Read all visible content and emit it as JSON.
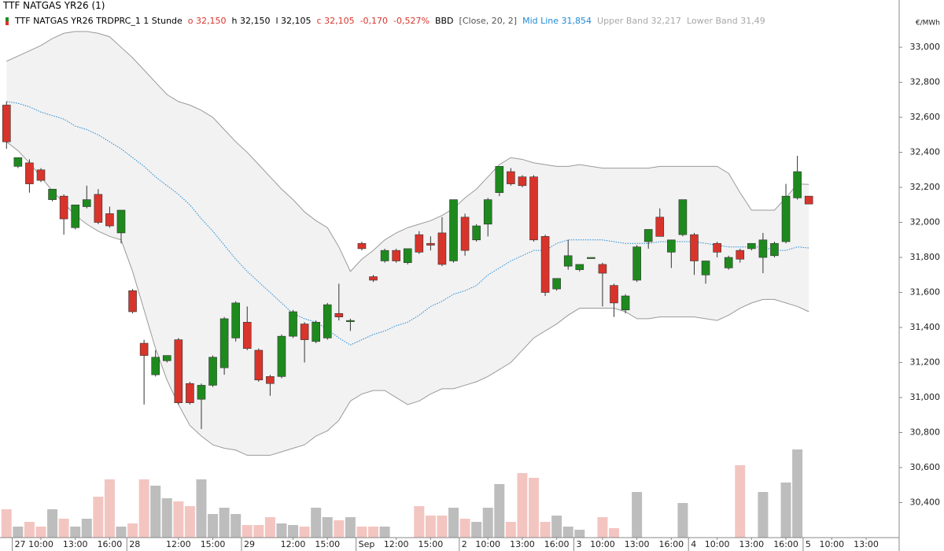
{
  "window_title": "TTF NATGAS YR26 (1)",
  "header": [
    {
      "text": "TTF NATGAS YR26 TRDPRC_1 1 Stunde",
      "color": "#000000"
    },
    {
      "text": "o 32,150",
      "color": "#d9342b"
    },
    {
      "text": "h 32,150",
      "color": "#000000"
    },
    {
      "text": "l 32,105",
      "color": "#000000"
    },
    {
      "text": "c 32,105",
      "color": "#d9342b"
    },
    {
      "text": "-0,170",
      "color": "#d9342b"
    },
    {
      "text": "-0,527%",
      "color": "#d9342b"
    },
    {
      "text": "BBD",
      "color": "#000000"
    },
    {
      "text": "[Close, 20, 2]",
      "color": "#555555"
    },
    {
      "text": "Mid Line 31,854",
      "color": "#1f8ad6"
    },
    {
      "text": "Upper Band 32,217",
      "color": "#a8a8a8"
    },
    {
      "text": "Lower Band 31,49",
      "color": "#a8a8a8"
    }
  ],
  "chart_data": {
    "type": "candlestick",
    "unit_label": "€/MWh",
    "ylim": [
      30.2,
      33.27
    ],
    "yticks": [
      {
        "value": 30.4,
        "label": "30,400"
      },
      {
        "value": 30.6,
        "label": "30,600"
      },
      {
        "value": 30.8,
        "label": "30,800"
      },
      {
        "value": 31.0,
        "label": "31,000"
      },
      {
        "value": 31.2,
        "label": "31,200"
      },
      {
        "value": 31.4,
        "label": "31,400"
      },
      {
        "value": 31.6,
        "label": "31,600"
      },
      {
        "value": 31.8,
        "label": "31,800"
      },
      {
        "value": 32.0,
        "label": "32,000"
      },
      {
        "value": 32.2,
        "label": "32,200"
      },
      {
        "value": 32.4,
        "label": "32,400"
      },
      {
        "value": 32.6,
        "label": "32,600"
      },
      {
        "value": 32.8,
        "label": "32,800"
      },
      {
        "value": 33.0,
        "label": "33,000"
      }
    ],
    "up_color": "#1e8a1e",
    "down_color": "#d9342b",
    "volume_up_color": "#bdbdbd",
    "volume_down_color": "#f3c5c1",
    "band_fill": "#f2f2f2",
    "categories": [
      null,
      "27",
      null,
      "10:00",
      null,
      null,
      "13:00",
      null,
      null,
      "16:00",
      null,
      "28",
      null,
      null,
      null,
      "12:00",
      null,
      null,
      "15:00",
      null,
      null,
      "29",
      null,
      null,
      null,
      "12:00",
      null,
      null,
      "15:00",
      null,
      null,
      "Sep",
      null,
      null,
      "12:00",
      null,
      null,
      "15:00",
      null,
      null,
      "2",
      null,
      "10:00",
      null,
      null,
      "13:00",
      null,
      null,
      "16:00",
      null,
      "3",
      null,
      "10:00",
      null,
      null,
      "13:00",
      null,
      null,
      "16:00",
      null,
      "4",
      null,
      "10:00",
      null,
      null,
      "13:00",
      null,
      null,
      "16:00",
      null,
      "5",
      null,
      "10:00",
      null,
      null,
      "13:00",
      null,
      null
    ],
    "open": [
      32.67,
      32.32,
      32.34,
      32.3,
      32.13,
      32.15,
      31.97,
      32.09,
      32.16,
      32.05,
      31.94,
      31.61,
      31.31,
      31.13,
      31.21,
      31.33,
      31.08,
      30.99,
      31.07,
      31.17,
      31.34,
      31.43,
      31.27,
      31.12,
      31.12,
      31.35,
      31.42,
      31.32,
      31.34,
      31.48,
      31.44,
      31.88,
      31.69,
      31.78,
      31.84,
      31.77,
      31.93,
      31.88,
      31.94,
      31.78,
      32.03,
      31.9,
      31.99,
      32.17,
      32.29,
      32.26,
      32.26,
      31.92,
      31.62,
      31.75,
      31.73,
      31.8,
      31.76,
      31.64,
      31.5,
      31.67,
      31.89,
      32.03,
      31.83,
      31.93,
      31.93,
      31.7,
      31.88,
      31.74,
      31.84,
      31.85,
      31.8,
      31.81,
      31.89,
      32.14,
      32.15,
      null,
      null,
      null,
      null,
      null,
      null,
      null
    ],
    "high": [
      32.69,
      32.37,
      32.36,
      32.31,
      32.19,
      32.16,
      32.1,
      32.21,
      32.19,
      32.09,
      32.07,
      31.62,
      31.33,
      31.27,
      31.24,
      31.34,
      31.09,
      31.08,
      31.24,
      31.46,
      31.55,
      31.52,
      31.28,
      31.13,
      31.36,
      31.5,
      31.43,
      31.44,
      31.54,
      31.65,
      31.45,
      31.89,
      31.7,
      31.85,
      31.85,
      31.85,
      31.95,
      31.92,
      32.03,
      32.13,
      32.05,
      31.99,
      32.14,
      32.32,
      32.31,
      32.27,
      32.27,
      31.93,
      31.68,
      31.9,
      31.76,
      31.8,
      31.77,
      31.65,
      31.59,
      31.87,
      31.96,
      32.08,
      31.9,
      32.13,
      31.94,
      31.78,
      31.89,
      31.81,
      31.85,
      31.88,
      31.94,
      31.89,
      32.22,
      32.38,
      32.15,
      null,
      null,
      null,
      null,
      null,
      null,
      null
    ],
    "low": [
      32.42,
      32.31,
      32.17,
      32.23,
      32.12,
      31.93,
      31.96,
      32.08,
      31.99,
      31.97,
      31.88,
      31.48,
      30.96,
      31.12,
      31.2,
      30.96,
      30.96,
      30.82,
      31.06,
      31.13,
      31.32,
      31.27,
      31.09,
      31.01,
      31.11,
      31.34,
      31.2,
      31.31,
      31.33,
      31.44,
      31.38,
      31.84,
      31.66,
      31.77,
      31.77,
      31.76,
      31.82,
      31.84,
      31.75,
      31.77,
      31.81,
      31.89,
      31.92,
      32.15,
      32.21,
      32.2,
      31.89,
      31.58,
      31.61,
      31.73,
      31.72,
      31.8,
      31.52,
      31.46,
      31.48,
      31.66,
      31.85,
      31.92,
      31.74,
      31.92,
      31.7,
      31.65,
      31.8,
      31.73,
      31.77,
      31.84,
      31.71,
      31.8,
      31.88,
      32.13,
      32.105,
      null,
      null,
      null,
      null,
      null,
      null,
      null
    ],
    "close": [
      32.46,
      32.37,
      32.22,
      32.24,
      32.19,
      32.02,
      32.1,
      32.13,
      32.0,
      31.98,
      32.07,
      31.49,
      31.24,
      31.23,
      31.24,
      30.97,
      30.97,
      31.07,
      31.23,
      31.45,
      31.54,
      31.28,
      31.1,
      31.08,
      31.35,
      31.49,
      31.33,
      31.43,
      31.53,
      31.46,
      31.44,
      31.85,
      31.67,
      31.84,
      31.78,
      31.85,
      31.83,
      31.87,
      31.76,
      32.13,
      31.84,
      31.98,
      32.13,
      32.32,
      32.22,
      32.21,
      31.9,
      31.6,
      31.68,
      31.81,
      31.76,
      31.8,
      31.71,
      31.54,
      31.58,
      31.86,
      31.96,
      31.92,
      31.9,
      32.13,
      31.78,
      31.78,
      31.83,
      31.8,
      31.79,
      31.88,
      31.9,
      31.88,
      32.15,
      32.29,
      32.105,
      null,
      null,
      null,
      null,
      null,
      null,
      null
    ],
    "volume": [
      36,
      14,
      20,
      14,
      36,
      24,
      14,
      24,
      52,
      74,
      14,
      18,
      74,
      66,
      50,
      46,
      40,
      74,
      30,
      38,
      30,
      16,
      16,
      26,
      18,
      16,
      14,
      38,
      26,
      22,
      26,
      14,
      14,
      14,
      0,
      0,
      40,
      28,
      28,
      38,
      24,
      20,
      38,
      68,
      20,
      82,
      76,
      20,
      28,
      14,
      10,
      0,
      26,
      12,
      0,
      58,
      0,
      0,
      0,
      44,
      0,
      0,
      0,
      0,
      92,
      0,
      58,
      0,
      70,
      112,
      0,
      null,
      null,
      null,
      null,
      null,
      null,
      null
    ],
    "series": [
      {
        "color": "#9a9a9a",
        "dash": false,
        "values": [
          32.92,
          32.95,
          32.98,
          33.01,
          33.05,
          33.08,
          33.09,
          33.09,
          33.08,
          33.06,
          33.0,
          32.94,
          32.87,
          32.8,
          32.73,
          32.69,
          32.67,
          32.64,
          32.6,
          32.53,
          32.46,
          32.4,
          32.33,
          32.26,
          32.19,
          32.13,
          32.06,
          32.01,
          31.97,
          31.86,
          31.72,
          31.79,
          31.84,
          31.9,
          31.94,
          31.97,
          31.99,
          32.01,
          32.04,
          32.08,
          32.14,
          32.19,
          32.26,
          32.33,
          32.37,
          32.36,
          32.34,
          32.33,
          32.32,
          32.32,
          32.33,
          32.32,
          32.31,
          32.31,
          32.31,
          32.31,
          32.31,
          32.32,
          32.32,
          32.32,
          32.32,
          32.32,
          32.32,
          32.28,
          32.17,
          32.07,
          32.07,
          32.07,
          32.14,
          32.22,
          32.217,
          null,
          null,
          null,
          null,
          null,
          null,
          null
        ]
      },
      {
        "color": "#1f8ad6",
        "dash": true,
        "values": [
          32.69,
          32.68,
          32.66,
          32.63,
          32.61,
          32.59,
          32.55,
          32.53,
          32.5,
          32.46,
          32.42,
          32.37,
          32.32,
          32.26,
          32.21,
          32.16,
          32.1,
          32.02,
          31.95,
          31.87,
          31.79,
          31.72,
          31.66,
          31.6,
          31.54,
          31.48,
          31.45,
          31.43,
          31.39,
          31.34,
          31.3,
          31.33,
          31.36,
          31.38,
          31.41,
          31.43,
          31.47,
          31.52,
          31.55,
          31.59,
          31.61,
          31.64,
          31.7,
          31.74,
          31.78,
          31.81,
          31.84,
          31.84,
          31.88,
          31.9,
          31.9,
          31.9,
          31.9,
          31.89,
          31.88,
          31.88,
          31.88,
          31.89,
          31.89,
          31.89,
          31.89,
          31.88,
          31.87,
          31.86,
          31.86,
          31.86,
          31.86,
          31.84,
          31.84,
          31.86,
          31.854,
          null,
          null,
          null,
          null,
          null,
          null,
          null
        ]
      },
      {
        "color": "#9a9a9a",
        "dash": false,
        "values": [
          32.46,
          32.41,
          32.34,
          32.26,
          32.18,
          32.11,
          32.04,
          31.99,
          31.95,
          31.92,
          31.9,
          31.72,
          31.5,
          31.28,
          31.1,
          30.96,
          30.84,
          30.78,
          30.73,
          30.71,
          30.7,
          30.67,
          30.67,
          30.67,
          30.69,
          30.71,
          30.73,
          30.78,
          30.81,
          30.87,
          30.98,
          31.02,
          31.04,
          31.04,
          31.0,
          30.96,
          30.98,
          31.02,
          31.05,
          31.05,
          31.07,
          31.09,
          31.12,
          31.16,
          31.2,
          31.27,
          31.34,
          31.38,
          31.42,
          31.47,
          31.51,
          31.51,
          31.51,
          31.51,
          31.49,
          31.45,
          31.45,
          31.46,
          31.46,
          31.46,
          31.46,
          31.45,
          31.44,
          31.47,
          31.51,
          31.54,
          31.56,
          31.56,
          31.54,
          31.52,
          31.49,
          null,
          null,
          null,
          null,
          null,
          null,
          null
        ]
      }
    ]
  }
}
